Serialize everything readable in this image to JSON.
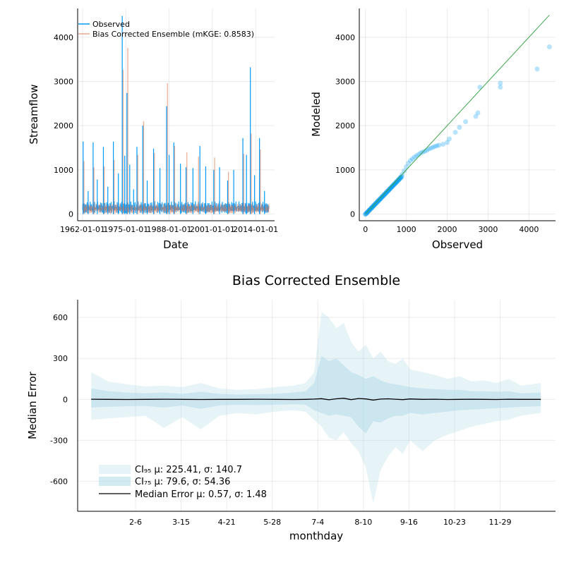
{
  "chart_data": [
    {
      "type": "line",
      "xlabel": "Date",
      "ylabel": "Streamflow",
      "x_ticks": [
        "1962-01-01",
        "1975-01-01",
        "1988-01-01",
        "2001-01-01",
        "2014-01-01"
      ],
      "x_range": [
        "1962-01-01",
        "2017-12-31"
      ],
      "y_ticks": [
        0,
        1000,
        2000,
        3000,
        4000
      ],
      "ylim": [
        -150,
        4650
      ],
      "grid": true,
      "legend": "top-left",
      "series": [
        {
          "name": "Observed",
          "color": "#009af9",
          "points": [
            [
              "1962-03-01",
              1640
            ],
            [
              "1963-09-01",
              520
            ],
            [
              "1965-03-01",
              1620
            ],
            [
              "1966-06-01",
              780
            ],
            [
              "1968-04-01",
              1520
            ],
            [
              "1969-08-01",
              620
            ],
            [
              "1971-04-01",
              1640
            ],
            [
              "1972-10-01",
              920
            ],
            [
              "1973-12-01",
              4480
            ],
            [
              "1974-09-01",
              1320
            ],
            [
              "1975-05-01",
              2740
            ],
            [
              "1976-03-01",
              1120
            ],
            [
              "1977-05-01",
              560
            ],
            [
              "1978-05-01",
              1520
            ],
            [
              "1980-02-01",
              2000
            ],
            [
              "1981-06-01",
              760
            ],
            [
              "1983-05-01",
              1480
            ],
            [
              "1985-04-01",
              1040
            ],
            [
              "1987-04-01",
              2440
            ],
            [
              "1988-01-01",
              1340
            ],
            [
              "1989-06-01",
              1620
            ],
            [
              "1991-06-01",
              1140
            ],
            [
              "1993-02-01",
              1060
            ],
            [
              "1995-03-01",
              1040
            ],
            [
              "1997-04-01",
              1540
            ],
            [
              "1999-01-01",
              1080
            ],
            [
              "2001-06-01",
              1000
            ],
            [
              "2003-03-01",
              1060
            ],
            [
              "2005-08-01",
              760
            ],
            [
              "2007-06-01",
              1000
            ],
            [
              "2010-03-01",
              1720
            ],
            [
              "2011-04-01",
              1340
            ],
            [
              "2012-06-01",
              3320
            ],
            [
              "2013-09-01",
              880
            ],
            [
              "2015-03-01",
              1720
            ],
            [
              "2016-09-01",
              520
            ]
          ]
        },
        {
          "name": "Bias Corrected Ensemble (mKGE: 0.8583)",
          "color": "#e26f46",
          "points": [
            [
              "1962-03-01",
              1200
            ],
            [
              "1965-03-01",
              1060
            ],
            [
              "1968-04-01",
              1080
            ],
            [
              "1971-04-01",
              1220
            ],
            [
              "1973-12-01",
              3260
            ],
            [
              "1975-05-01",
              3760
            ],
            [
              "1978-05-01",
              1340
            ],
            [
              "1980-02-01",
              2100
            ],
            [
              "1983-05-01",
              1380
            ],
            [
              "1987-04-01",
              2960
            ],
            [
              "1989-06-01",
              1540
            ],
            [
              "1993-02-01",
              1400
            ],
            [
              "1996-08-01",
              1300
            ],
            [
              "2001-06-01",
              1280
            ],
            [
              "2005-08-01",
              960
            ],
            [
              "2010-03-01",
              1360
            ],
            [
              "2012-06-01",
              1820
            ],
            [
              "2015-03-01",
              1460
            ]
          ]
        }
      ]
    },
    {
      "type": "scatter",
      "xlabel": "Observed",
      "ylabel": "Modeled",
      "x_ticks": [
        0,
        1000,
        2000,
        3000,
        4000
      ],
      "y_ticks": [
        0,
        1000,
        2000,
        3000,
        4000
      ],
      "xlim": [
        -150,
        4650
      ],
      "ylim": [
        -150,
        4650
      ],
      "grid": true,
      "identity_line": {
        "from": [
          0,
          0
        ],
        "to": [
          4500,
          4500
        ],
        "color": "#3da44d"
      },
      "point_color": "#009af9",
      "points": [
        [
          0,
          0
        ],
        [
          50,
          45
        ],
        [
          100,
          95
        ],
        [
          150,
          145
        ],
        [
          200,
          195
        ],
        [
          250,
          240
        ],
        [
          300,
          290
        ],
        [
          350,
          335
        ],
        [
          400,
          385
        ],
        [
          450,
          430
        ],
        [
          500,
          480
        ],
        [
          550,
          525
        ],
        [
          600,
          575
        ],
        [
          650,
          625
        ],
        [
          700,
          670
        ],
        [
          750,
          720
        ],
        [
          800,
          775
        ],
        [
          850,
          830
        ],
        [
          900,
          900
        ],
        [
          950,
          980
        ],
        [
          1000,
          1070
        ],
        [
          1050,
          1150
        ],
        [
          1100,
          1210
        ],
        [
          1150,
          1250
        ],
        [
          1200,
          1290
        ],
        [
          1250,
          1320
        ],
        [
          1300,
          1350
        ],
        [
          1350,
          1380
        ],
        [
          1400,
          1400
        ],
        [
          1450,
          1420
        ],
        [
          1500,
          1440
        ],
        [
          1550,
          1470
        ],
        [
          1600,
          1490
        ],
        [
          1650,
          1510
        ],
        [
          1700,
          1530
        ],
        [
          1750,
          1545
        ],
        [
          1800,
          1560
        ],
        [
          1900,
          1580
        ],
        [
          2000,
          1620
        ],
        [
          2050,
          1700
        ],
        [
          2200,
          1850
        ],
        [
          2300,
          1960
        ],
        [
          2450,
          2090
        ],
        [
          2700,
          2210
        ],
        [
          2750,
          2290
        ],
        [
          2800,
          2870
        ],
        [
          3300,
          2870
        ],
        [
          3300,
          2960
        ],
        [
          4200,
          3280
        ],
        [
          4500,
          3780
        ]
      ]
    },
    {
      "type": "area",
      "title": "Bias Corrected Ensemble",
      "xlabel": "monthday",
      "ylabel": "Median Error",
      "x_ticks": [
        "2-6",
        "3-15",
        "4-21",
        "5-28",
        "7-4",
        "8-10",
        "9-16",
        "10-23",
        "11-29"
      ],
      "x_tick_days": [
        37,
        74,
        111,
        148,
        185,
        222,
        259,
        296,
        333
      ],
      "xlim": [
        -10,
        378
      ],
      "y_ticks": [
        -600,
        -300,
        0,
        300,
        600
      ],
      "ylim": [
        -820,
        730
      ],
      "grid": true,
      "legend": "bottom-left",
      "band_days": [
        1,
        15,
        30,
        45,
        60,
        75,
        90,
        105,
        120,
        135,
        150,
        165,
        175,
        182,
        188,
        194,
        200,
        206,
        212,
        218,
        224,
        230,
        236,
        242,
        248,
        254,
        260,
        270,
        280,
        290,
        300,
        310,
        320,
        330,
        340,
        350,
        366
      ],
      "series": [
        {
          "name": "CI₉₅ μ: 225.41, σ: 140.7",
          "color": "#add8e6",
          "upper": [
            200,
            130,
            110,
            95,
            100,
            90,
            120,
            80,
            70,
            75,
            90,
            100,
            120,
            200,
            640,
            600,
            520,
            560,
            420,
            350,
            400,
            300,
            350,
            280,
            260,
            300,
            220,
            200,
            180,
            150,
            170,
            130,
            140,
            120,
            150,
            100,
            120
          ],
          "lower": [
            -150,
            -140,
            -130,
            -120,
            -210,
            -130,
            -220,
            -120,
            -100,
            -110,
            -90,
            -80,
            -90,
            -150,
            -200,
            -280,
            -300,
            -240,
            -320,
            -380,
            -500,
            -760,
            -520,
            -420,
            -350,
            -400,
            -300,
            -380,
            -300,
            -260,
            -230,
            -200,
            -180,
            -160,
            -150,
            -120,
            -100
          ]
        },
        {
          "name": "CI₇₅ μ: 79.6, σ: 54.36",
          "color": "#add8e6",
          "upper": [
            80,
            60,
            50,
            45,
            50,
            40,
            55,
            40,
            35,
            38,
            40,
            50,
            60,
            120,
            320,
            280,
            300,
            250,
            200,
            180,
            150,
            170,
            140,
            120,
            110,
            100,
            90,
            80,
            75,
            70,
            70,
            60,
            60,
            55,
            60,
            45,
            50
          ],
          "lower": [
            -60,
            -55,
            -50,
            -48,
            -60,
            -45,
            -70,
            -45,
            -40,
            -42,
            -40,
            -35,
            -40,
            -80,
            -100,
            -120,
            -110,
            -120,
            -130,
            -200,
            -250,
            -160,
            -170,
            -140,
            -120,
            -120,
            -100,
            -110,
            -100,
            -90,
            -80,
            -75,
            -70,
            -65,
            -60,
            -55,
            -50
          ]
        },
        {
          "name": "Median Error μ: 0.57, σ: 1.48",
          "color": "#000000",
          "values": [
            1,
            0,
            -1,
            0,
            1,
            0,
            -1,
            0,
            0,
            1,
            0,
            -1,
            0,
            2,
            5,
            -3,
            4,
            8,
            -2,
            6,
            3,
            -5,
            2,
            4,
            1,
            -2,
            3,
            0,
            1,
            -1,
            0,
            1,
            0,
            -1,
            1,
            0,
            0
          ]
        }
      ]
    }
  ]
}
